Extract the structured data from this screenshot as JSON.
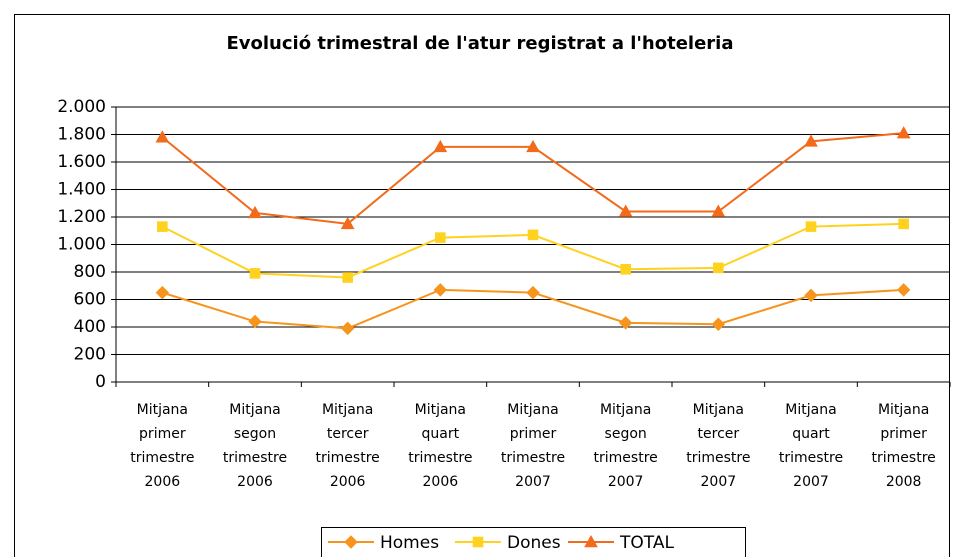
{
  "chart_data": {
    "type": "line",
    "title": "Evolució trimestral de l'atur registrat a l'hoteleria",
    "categories": [
      "Mitjana primer trimestre 2006",
      "Mitjana segon trimestre 2006",
      "Mitjana tercer trimestre 2006",
      "Mitjana quart trimestre 2006",
      "Mitjana primer trimestre 2007",
      "Mitjana segon trimestre 2007",
      "Mitjana tercer trimestre 2007",
      "Mitjana quart trimestre 2007",
      "Mitjana primer trimestre 2008"
    ],
    "series": [
      {
        "name": "Homes",
        "color": "#f7941d",
        "marker": "diamond",
        "values": [
          650,
          440,
          390,
          670,
          650,
          430,
          420,
          630,
          670
        ]
      },
      {
        "name": "Dones",
        "color": "#ffd21f",
        "marker": "square",
        "values": [
          1130,
          790,
          760,
          1050,
          1070,
          820,
          830,
          1130,
          1150
        ]
      },
      {
        "name": "TOTAL",
        "color": "#f26a1b",
        "marker": "triangle",
        "values": [
          1780,
          1230,
          1150,
          1710,
          1710,
          1240,
          1240,
          1750,
          1810
        ]
      }
    ],
    "ylim": [
      0,
      2000
    ],
    "yticks": [
      0,
      200,
      400,
      600,
      800,
      {
        "value": 1000,
        "label": "1.000"
      },
      {
        "value": 1200,
        "label": "1.200"
      },
      {
        "value": 1400,
        "label": "1.400"
      },
      {
        "value": 1600,
        "label": "1.600"
      },
      {
        "value": 1800,
        "label": "1.800"
      },
      {
        "value": 2000,
        "label": "2.000"
      }
    ],
    "grid": true,
    "legend": "bottom"
  }
}
